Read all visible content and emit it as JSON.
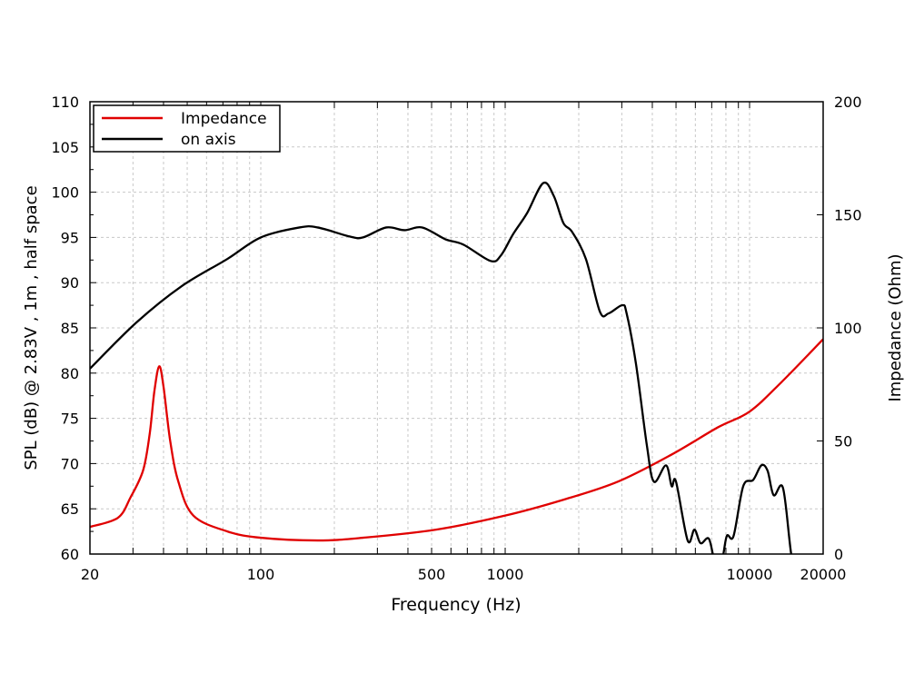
{
  "chart_data": {
    "type": "line",
    "title": "",
    "xlabel": "Frequency (Hz)",
    "ylabel": "SPL (dB) @ 2.83V , 1m , half space",
    "y2label": "Impedance (Ohm)",
    "xscale": "log",
    "xlim": [
      20,
      20000
    ],
    "ylim": [
      60,
      110
    ],
    "y2lim": [
      0,
      200
    ],
    "grid": true,
    "legend_position": "top-left",
    "xticks": [
      20,
      100,
      500,
      1000,
      10000,
      20000
    ],
    "xtick_labels": [
      "20",
      "100",
      "500",
      "1000",
      "10000",
      "20000"
    ],
    "yticks": [
      60,
      65,
      70,
      75,
      80,
      85,
      90,
      95,
      100,
      105,
      110
    ],
    "ytick_labels": [
      "60",
      "65",
      "70",
      "75",
      "80",
      "85",
      "90",
      "95",
      "100",
      "105",
      "110"
    ],
    "y2ticks": [
      0,
      50,
      100,
      150,
      200
    ],
    "y2tick_labels": [
      "0",
      "50",
      "100",
      "150",
      "200"
    ],
    "series": [
      {
        "name": "Impedance",
        "axis": "right",
        "color": "#e00000",
        "x": [
          20,
          26,
          29.3,
          33,
          35.1,
          36.7,
          38.4,
          40,
          42.6,
          46,
          53,
          73,
          100,
          171,
          262,
          522,
          1000,
          1730,
          2890,
          4800,
          7410,
          10000,
          13500,
          20000
        ],
        "y": [
          12,
          16,
          25,
          37,
          53,
          72,
          83,
          74,
          50,
          32,
          17,
          10,
          7.2,
          6,
          7.2,
          10.8,
          17,
          24,
          32,
          44,
          56,
          63,
          76,
          95
        ]
      },
      {
        "name": "on axis",
        "axis": "left",
        "color": "#000000",
        "x": [
          20,
          31,
          47.4,
          72.8,
          100,
          144,
          171,
          231,
          262,
          326,
          387,
          458,
          569,
          675,
          871,
          960,
          1080,
          1230,
          1430,
          1580,
          1730,
          1880,
          2140,
          2440,
          2650,
          3010,
          3140,
          3430,
          3800,
          4060,
          4550,
          4800,
          5000,
          5580,
          5950,
          6300,
          6810,
          7200,
          7700,
          8070,
          8600,
          9420,
          10350,
          11170,
          11850,
          12550,
          13700,
          14800,
          16000
        ],
        "y": [
          80.5,
          85.6,
          89.6,
          92.6,
          95,
          96.1,
          96.1,
          95.1,
          95,
          96.1,
          95.8,
          96.1,
          94.8,
          94.2,
          92.4,
          93,
          95.4,
          97.7,
          101,
          99.6,
          96.6,
          95.6,
          92.6,
          86.8,
          86.6,
          87.5,
          86.6,
          81,
          72,
          68,
          69.8,
          67.5,
          68,
          61.5,
          62.7,
          61.2,
          61.7,
          59.3,
          59.3,
          62,
          62,
          67.5,
          68.2,
          69.8,
          69.2,
          66.5,
          67.3,
          60,
          55
        ]
      }
    ]
  }
}
